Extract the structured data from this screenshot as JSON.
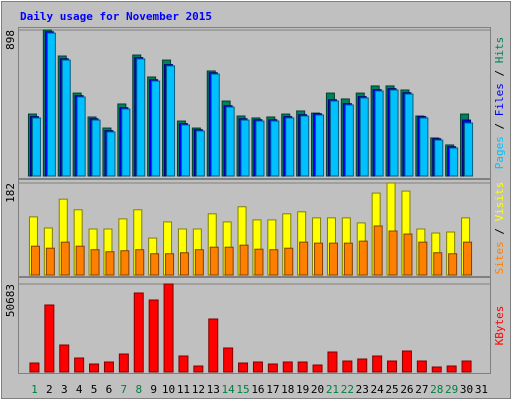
{
  "chart_data": [
    {
      "type": "bar",
      "title": "Daily usage for November 2015",
      "title_color": "#0000FF",
      "ylim": [
        0,
        898
      ],
      "yticks": [
        898
      ],
      "legend_separator": " / ",
      "series": [
        {
          "name": "Hits",
          "color": "#00805C",
          "values": [
            381,
            898,
            738,
            510,
            363,
            295,
            443,
            744,
            609,
            713,
            338,
            295,
            646,
            461,
            369,
            357,
            363,
            381,
            400,
            387,
            510,
            474,
            510,
            554,
            554,
            529,
            369,
            234,
            191,
            381,
            null
          ]
        },
        {
          "name": "Files",
          "color": "#0000FF",
          "values": [
            365,
            887,
            721,
            494,
            352,
            279,
            420,
            728,
            592,
            685,
            322,
            285,
            635,
            432,
            352,
            346,
            346,
            365,
            377,
            383,
            469,
            445,
            488,
            531,
            537,
            512,
            365,
            229,
            180,
            344,
            null
          ]
        },
        {
          "name": "Pages",
          "color": "#00C0FF",
          "values": [
            357,
            879,
            713,
            486,
            344,
            271,
            412,
            720,
            584,
            677,
            314,
            277,
            627,
            424,
            344,
            338,
            338,
            357,
            369,
            375,
            461,
            437,
            480,
            523,
            529,
            504,
            357,
            221,
            172,
            326,
            null
          ]
        }
      ]
    },
    {
      "type": "bar",
      "ylim": [
        0,
        182
      ],
      "yticks": [
        182
      ],
      "legend_separator": " / ",
      "series": [
        {
          "name": "Visits",
          "color": "#FFFF00",
          "values": [
            115,
            93,
            150,
            129,
            91,
            91,
            111,
            129,
            73,
            105,
            91,
            91,
            121,
            105,
            135,
            109,
            109,
            121,
            125,
            113,
            113,
            113,
            103,
            162,
            182,
            166,
            91,
            83,
            85,
            113,
            null
          ]
        },
        {
          "name": "Sites",
          "color": "#FF8000",
          "values": [
            57,
            53,
            65,
            57,
            50,
            46,
            48,
            50,
            42,
            42,
            44,
            50,
            55,
            55,
            59,
            51,
            50,
            53,
            65,
            63,
            63,
            63,
            67,
            97,
            87,
            81,
            65,
            44,
            42,
            65,
            null
          ]
        }
      ]
    },
    {
      "type": "bar",
      "ylim": [
        0,
        50683
      ],
      "yticks": [
        50683
      ],
      "categories": [
        "1",
        "2",
        "3",
        "4",
        "5",
        "6",
        "7",
        "8",
        "9",
        "10",
        "11",
        "12",
        "13",
        "14",
        "15",
        "16",
        "17",
        "18",
        "19",
        "20",
        "21",
        "22",
        "23",
        "24",
        "25",
        "26",
        "27",
        "28",
        "29",
        "30",
        "31"
      ],
      "category_colors": [
        "#008040",
        "#000000",
        "#000000",
        "#000000",
        "#000000",
        "#000000",
        "#008040",
        "#008040",
        "#000000",
        "#000000",
        "#000000",
        "#000000",
        "#000000",
        "#008040",
        "#008040",
        "#000000",
        "#000000",
        "#000000",
        "#000000",
        "#000000",
        "#008040",
        "#008040",
        "#000000",
        "#000000",
        "#000000",
        "#000000",
        "#000000",
        "#008040",
        "#008040",
        "#000000",
        "#000000"
      ],
      "series": [
        {
          "name": "KBytes",
          "color": "#FF0000",
          "values": [
            5184,
            38592,
            15552,
            8064,
            4608,
            5760,
            10368,
            45504,
            41472,
            50683,
            9216,
            3456,
            30528,
            13824,
            5184,
            5760,
            4608,
            5760,
            5760,
            4032,
            11520,
            6336,
            7488,
            9216,
            6336,
            12096,
            6336,
            2880,
            3456,
            6336,
            null
          ]
        }
      ]
    }
  ]
}
